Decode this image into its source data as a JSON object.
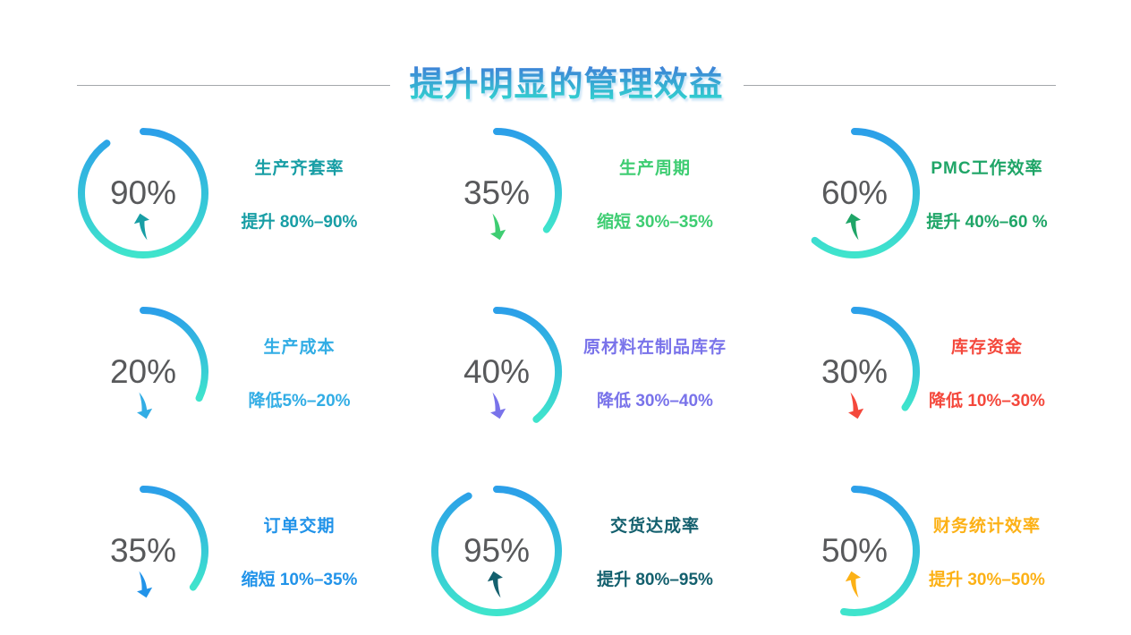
{
  "page": {
    "title": "提升明显的管理效益",
    "background": "#ffffff",
    "divider_color": "#a4a8ab",
    "title_gradient_top": "#3F7CD8",
    "title_gradient_bottom": "#2FE0CE"
  },
  "ring": {
    "gradient_top": "#2B9FE9",
    "gradient_bottom": "#3FE4CC",
    "stroke_width": 8
  },
  "percent_text_color": "#58595B",
  "chart_data": {
    "type": "gauge-grid",
    "title": "提升明显的管理效益",
    "layout": "3x3",
    "items": [
      {
        "pct": 90,
        "pct_label": "90%",
        "direction": "up",
        "sweep_deg": 324,
        "title": "生产齐套率",
        "desc": "提升 80%–90%",
        "color": "#189EA5"
      },
      {
        "pct": 35,
        "pct_label": "35%",
        "direction": "down",
        "sweep_deg": 126,
        "title": "生产周期",
        "desc": "缩短 30%–35%",
        "color": "#3ECD72"
      },
      {
        "pct": 60,
        "pct_label": "60%",
        "direction": "up",
        "sweep_deg": 220,
        "title": "PMC工作效率",
        "desc": "提升 40%–60 %",
        "color": "#1FA567"
      },
      {
        "pct": 20,
        "pct_label": "20%",
        "direction": "down",
        "sweep_deg": 115,
        "title": "生产成本",
        "desc": "降低5%–20%",
        "color": "#32ADE5"
      },
      {
        "pct": 40,
        "pct_label": "40%",
        "direction": "down",
        "sweep_deg": 140,
        "title": "原材料在制品库存",
        "desc": "降低 30%–40%",
        "color": "#7973EA"
      },
      {
        "pct": 30,
        "pct_label": "30%",
        "direction": "down",
        "sweep_deg": 125,
        "title": "库存资金",
        "desc": "降低 10%–30%",
        "color": "#F4483C"
      },
      {
        "pct": 35,
        "pct_label": "35%",
        "direction": "down",
        "sweep_deg": 126,
        "title": "订单交期",
        "desc": "缩短 10%–35%",
        "color": "#2193E9"
      },
      {
        "pct": 95,
        "pct_label": "95%",
        "direction": "up",
        "sweep_deg": 333,
        "title": "交货达成率",
        "desc": "提升 80%–95%",
        "color": "#14606E"
      },
      {
        "pct": 50,
        "pct_label": "50%",
        "direction": "up",
        "sweep_deg": 190,
        "title": "财务统计效率",
        "desc": "提升 30%–50%",
        "color": "#FCB116"
      }
    ]
  }
}
